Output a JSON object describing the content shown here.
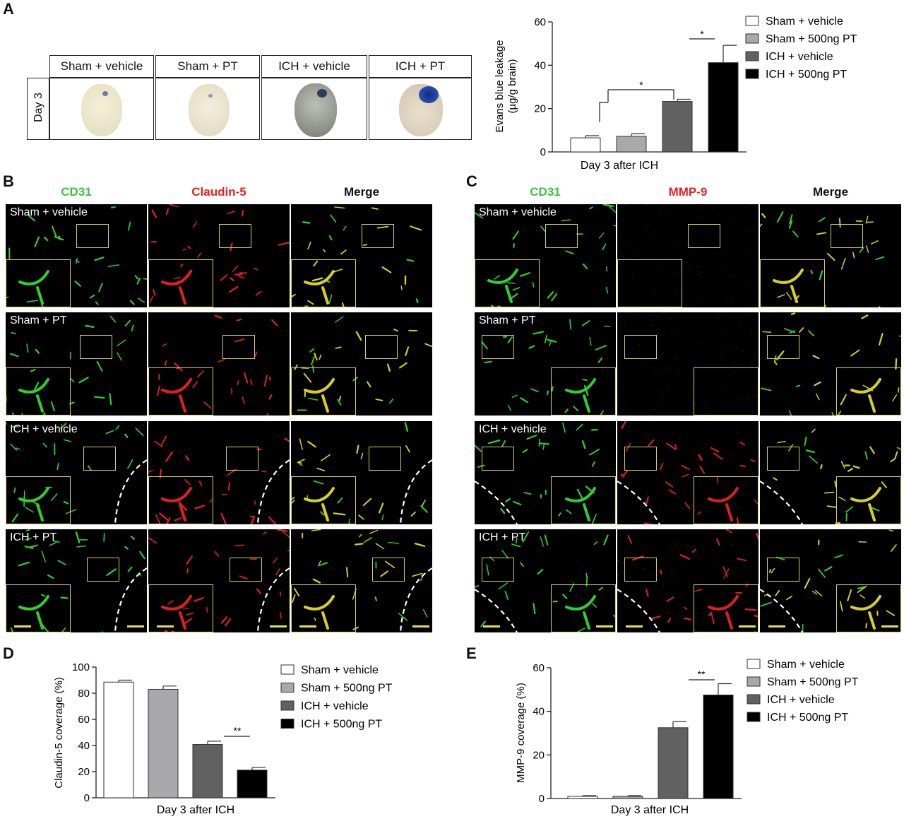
{
  "panels": {
    "a": "A",
    "b": "B",
    "c": "C",
    "d": "D",
    "e": "E"
  },
  "brain_table": {
    "row_label": "Day 3",
    "columns": [
      "Sham + vehicle",
      "Sham + PT",
      "ICH + vehicle",
      "ICH + PT"
    ]
  },
  "micro_b": {
    "columns": [
      "CD31",
      "Claudin-5",
      "Merge"
    ],
    "rows": [
      "Sham + vehicle",
      "Sham + PT",
      "ICH + vehicle",
      "ICH + PT"
    ]
  },
  "micro_c": {
    "columns": [
      "CD31",
      "MMP-9",
      "Merge"
    ],
    "rows": [
      "Sham + vehicle",
      "Sham + PT",
      "ICH + vehicle",
      "ICH + PT"
    ]
  },
  "colors": {
    "green": "#33cc33",
    "red": "#e52222",
    "series": [
      "#ffffff",
      "#a8a8ad",
      "#616161",
      "#000000"
    ]
  },
  "chart_data": [
    {
      "id": "A",
      "type": "bar",
      "categories": [
        "Sham + vehicle",
        "Sham + 500ng PT",
        "ICH + vehicle",
        "ICH + 500ng PT"
      ],
      "values": [
        6.5,
        7.2,
        23.3,
        41.2
      ],
      "errors": [
        1.0,
        1.2,
        1.0,
        8.0
      ],
      "ylabel": "Evans blue  leakage\n(µg/g brain)",
      "xlabel": "Day 3 after ICH",
      "ylim": [
        0,
        60
      ],
      "yticks": [
        "0",
        "20",
        "40",
        "60"
      ],
      "significance": [
        "*",
        "*"
      ]
    },
    {
      "id": "D",
      "type": "bar",
      "categories": [
        "Sham + vehicle",
        "Sham + 500ng PT",
        "ICH + vehicle",
        "ICH + 500ng PT"
      ],
      "values": [
        88.5,
        83.0,
        40.8,
        21.2
      ],
      "errors": [
        1.5,
        2.5,
        2.5,
        2.0
      ],
      "ylabel": "Claudin-5 coverage (%)",
      "xlabel": "Day 3 after ICH",
      "ylim": [
        0,
        100
      ],
      "yticks": [
        "0",
        "20",
        "40",
        "60",
        "80",
        "100"
      ],
      "significance": [
        "**"
      ]
    },
    {
      "id": "E",
      "type": "bar",
      "categories": [
        "Sham + vehicle",
        "Sham + 500ng PT",
        "ICH + vehicle",
        "ICH + 500ng PT"
      ],
      "values": [
        1.0,
        1.0,
        32.5,
        47.5
      ],
      "errors": [
        0.3,
        0.3,
        2.8,
        5.2
      ],
      "ylabel": "MMP-9 coverage (%)",
      "xlabel": "Day 3 after ICH",
      "ylim": [
        0,
        60
      ],
      "yticks": [
        "0",
        "20",
        "40",
        "60"
      ],
      "significance": [
        "**"
      ]
    }
  ]
}
